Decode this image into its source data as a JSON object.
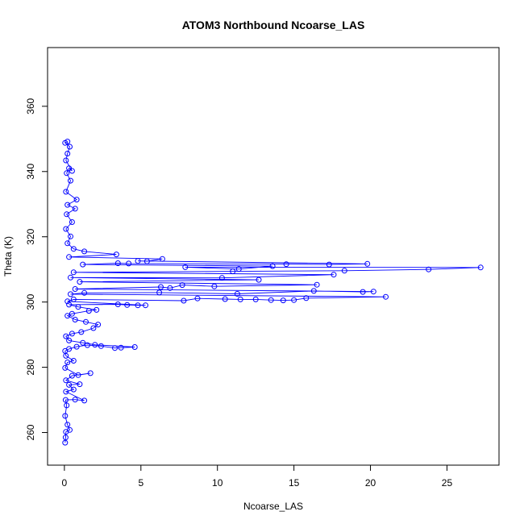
{
  "chart_data": {
    "type": "scatter",
    "title": "ATOM3 Northbound Ncoarse_LAS",
    "xlabel": "Ncoarse_LAS",
    "ylabel": "Theta (K)",
    "xlim": [
      -1.1,
      28.4
    ],
    "ylim": [
      250,
      378
    ],
    "xticks": [
      0,
      5,
      10,
      15,
      20,
      25
    ],
    "yticks": [
      260,
      280,
      300,
      320,
      340,
      360
    ],
    "xtick_labels": [
      "0",
      "5",
      "10",
      "15",
      "20",
      "25"
    ],
    "ytick_labels": [
      "260",
      "280",
      "300",
      "320",
      "340",
      "360"
    ],
    "grid": false,
    "legend": "none",
    "series": [
      {
        "color": "#0000ff",
        "marker": "open-circle",
        "line": true,
        "points": [
          [
            0.05,
            256.9
          ],
          [
            0.08,
            258.5
          ],
          [
            0.1,
            260.2
          ],
          [
            0.35,
            260.8
          ],
          [
            0.2,
            262.4
          ],
          [
            0.05,
            265.1
          ],
          [
            0.15,
            268.3
          ],
          [
            0.08,
            270.0
          ],
          [
            0.7,
            270.1
          ],
          [
            1.3,
            269.8
          ],
          [
            0.1,
            272.5
          ],
          [
            0.6,
            273.2
          ],
          [
            0.3,
            274.6
          ],
          [
            1.0,
            274.8
          ],
          [
            0.1,
            276.0
          ],
          [
            0.5,
            277.4
          ],
          [
            1.7,
            278.2
          ],
          [
            0.9,
            277.6
          ],
          [
            0.05,
            279.8
          ],
          [
            0.2,
            281.5
          ],
          [
            0.6,
            282.0
          ],
          [
            0.1,
            283.5
          ],
          [
            0.05,
            285.0
          ],
          [
            0.3,
            285.6
          ],
          [
            0.8,
            286.3
          ],
          [
            1.5,
            286.8
          ],
          [
            2.4,
            286.5
          ],
          [
            3.3,
            285.9
          ],
          [
            3.7,
            286.0
          ],
          [
            4.6,
            286.2
          ],
          [
            2.0,
            286.9
          ],
          [
            1.2,
            287.5
          ],
          [
            0.3,
            288.2
          ],
          [
            0.1,
            289.5
          ],
          [
            0.5,
            290.3
          ],
          [
            1.1,
            290.8
          ],
          [
            1.9,
            292.0
          ],
          [
            2.2,
            293.1
          ],
          [
            1.4,
            293.9
          ],
          [
            0.7,
            294.6
          ],
          [
            0.2,
            295.8
          ],
          [
            0.5,
            296.4
          ],
          [
            1.6,
            297.3
          ],
          [
            2.1,
            297.6
          ],
          [
            0.9,
            298.5
          ],
          [
            0.3,
            299.2
          ],
          [
            3.5,
            299.3
          ],
          [
            4.1,
            299.1
          ],
          [
            4.8,
            299.0
          ],
          [
            5.3,
            299.0
          ],
          [
            0.2,
            300.2
          ],
          [
            0.6,
            300.8
          ],
          [
            7.8,
            300.4
          ],
          [
            8.7,
            301.1
          ],
          [
            10.5,
            300.9
          ],
          [
            11.5,
            300.8
          ],
          [
            12.5,
            300.8
          ],
          [
            13.5,
            300.6
          ],
          [
            14.3,
            300.5
          ],
          [
            15.0,
            300.6
          ],
          [
            15.8,
            301.2
          ],
          [
            21.0,
            301.6
          ],
          [
            0.4,
            302.4
          ],
          [
            1.3,
            302.8
          ],
          [
            6.2,
            302.9
          ],
          [
            11.3,
            302.5
          ],
          [
            16.3,
            303.4
          ],
          [
            19.5,
            303.1
          ],
          [
            20.2,
            303.2
          ],
          [
            0.7,
            304.0
          ],
          [
            6.3,
            304.6
          ],
          [
            6.9,
            304.3
          ],
          [
            7.7,
            305.2
          ],
          [
            9.8,
            304.8
          ],
          [
            16.5,
            305.3
          ],
          [
            1.0,
            306.2
          ],
          [
            12.7,
            306.8
          ],
          [
            0.4,
            307.5
          ],
          [
            10.3,
            307.4
          ],
          [
            17.6,
            308.4
          ],
          [
            0.6,
            309.1
          ],
          [
            11.0,
            309.4
          ],
          [
            18.3,
            309.6
          ],
          [
            23.8,
            310.0
          ],
          [
            27.2,
            310.6
          ],
          [
            7.9,
            310.7
          ],
          [
            11.4,
            310.1
          ],
          [
            13.6,
            311.0
          ],
          [
            1.2,
            311.5
          ],
          [
            3.5,
            311.9
          ],
          [
            4.2,
            311.8
          ],
          [
            14.5,
            311.6
          ],
          [
            17.3,
            311.5
          ],
          [
            19.8,
            311.7
          ],
          [
            4.8,
            312.6
          ],
          [
            5.4,
            312.5
          ],
          [
            6.4,
            313.2
          ],
          [
            0.3,
            313.8
          ],
          [
            3.4,
            314.6
          ],
          [
            1.3,
            315.5
          ],
          [
            0.6,
            316.3
          ],
          [
            0.2,
            318.0
          ],
          [
            0.4,
            320.1
          ],
          [
            0.1,
            322.4
          ],
          [
            0.5,
            324.5
          ],
          [
            0.15,
            326.9
          ],
          [
            0.7,
            328.6
          ],
          [
            0.2,
            329.8
          ],
          [
            0.8,
            331.4
          ],
          [
            0.1,
            333.8
          ],
          [
            0.4,
            337.2
          ],
          [
            0.15,
            339.5
          ],
          [
            0.3,
            341.0
          ],
          [
            0.5,
            340.2
          ],
          [
            0.1,
            343.4
          ],
          [
            0.2,
            345.5
          ],
          [
            0.35,
            347.6
          ],
          [
            0.05,
            348.8
          ],
          [
            0.2,
            349.2
          ]
        ]
      }
    ]
  }
}
